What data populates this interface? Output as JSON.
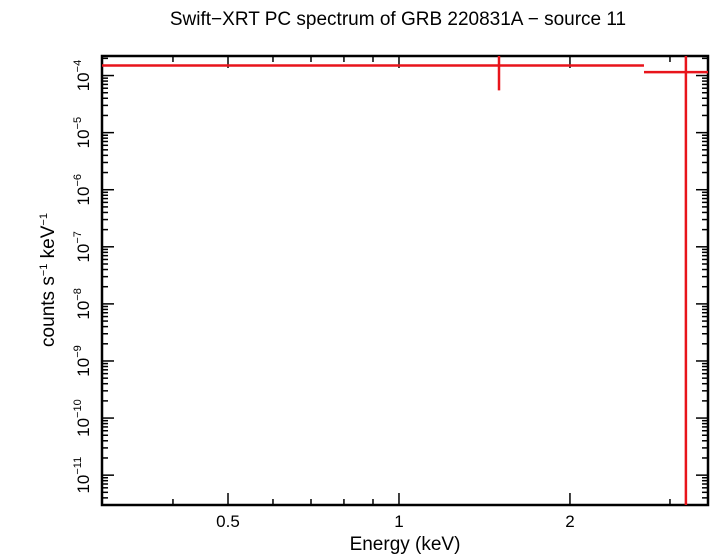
{
  "chart_data": {
    "type": "scatter",
    "title": "Swift−XRT PC spectrum of GRB 220831A − source 11",
    "xlabel": "Energy (keV)",
    "ylabel": {
      "base": "counts s",
      "exp1": "−1",
      "mid": " keV",
      "exp2": "−1"
    },
    "x_scale": "log",
    "y_scale": "log",
    "xlim": [
      0.3,
      3.5
    ],
    "ylim": [
      3e-12,
      0.00022
    ],
    "x_tick_labels": [
      {
        "value": 0.5,
        "label": "0.5"
      },
      {
        "value": 1,
        "label": "1"
      },
      {
        "value": 2,
        "label": "2"
      }
    ],
    "y_tick_labels": [
      {
        "value": 1e-11,
        "base": "10",
        "exp": "−11"
      },
      {
        "value": 1e-10,
        "base": "10",
        "exp": "−10"
      },
      {
        "value": 1e-09,
        "base": "10",
        "exp": "−9"
      },
      {
        "value": 1e-08,
        "base": "10",
        "exp": "−8"
      },
      {
        "value": 1e-07,
        "base": "10",
        "exp": "−7"
      },
      {
        "value": 1e-06,
        "base": "10",
        "exp": "−6"
      },
      {
        "value": 1e-05,
        "base": "10",
        "exp": "−5"
      },
      {
        "value": 0.0001,
        "base": "10",
        "exp": "−4"
      }
    ],
    "series": [
      {
        "name": "source 11",
        "color": "#e8141b",
        "points": [
          {
            "x": 1.5,
            "x_lo": 0.3,
            "x_hi": 2.7,
            "y": 0.00015,
            "y_lo": 5.5e-05,
            "y_hi": 0.00022
          },
          {
            "x": 3.2,
            "x_lo": 2.7,
            "x_hi": 3.5,
            "y": 0.000115,
            "y_lo": 3e-12,
            "y_hi": 0.00022
          }
        ]
      }
    ]
  }
}
